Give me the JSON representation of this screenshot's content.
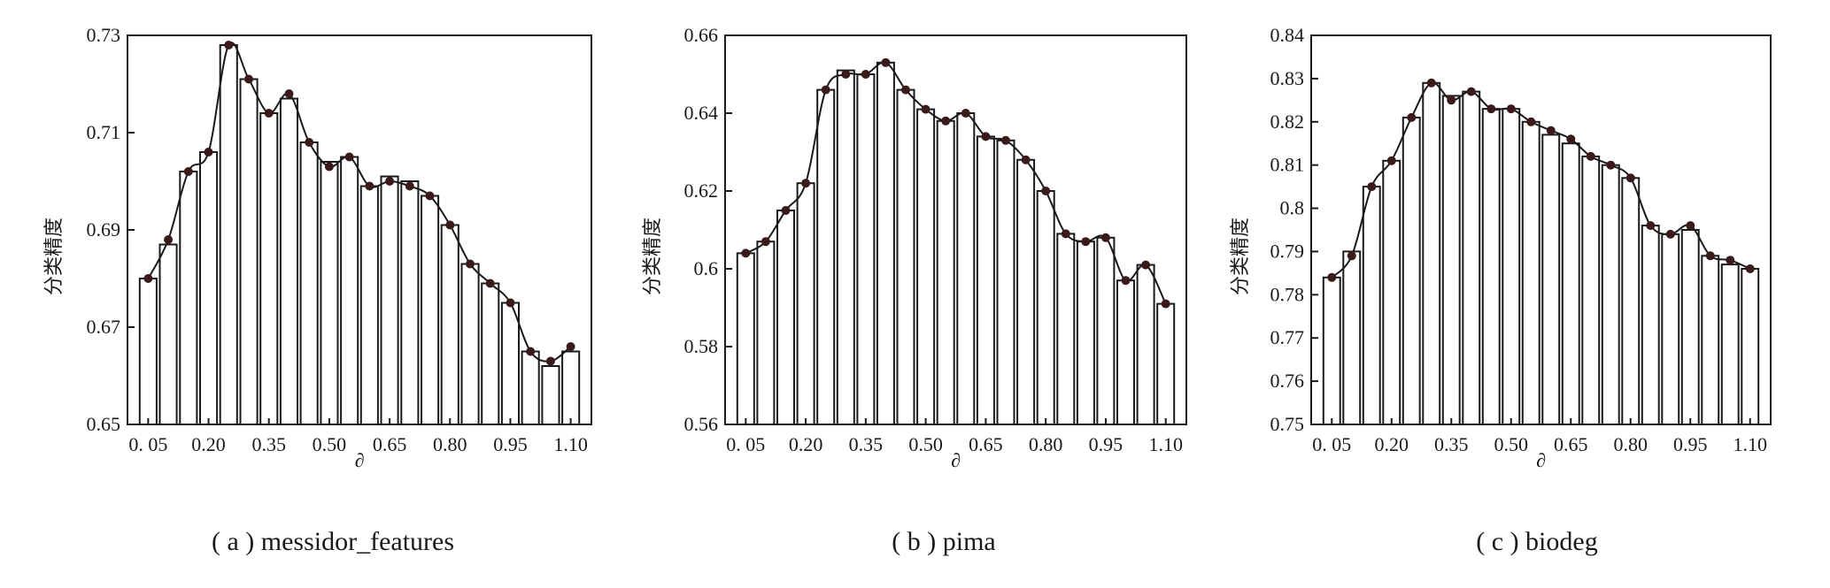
{
  "chart_data": [
    {
      "type": "bar",
      "caption": "( a ) messidor_features",
      "xlabel": "∂",
      "ylabel": "分类精度",
      "ylim": [
        0.65,
        0.73
      ],
      "yticks": [
        0.65,
        0.67,
        0.69,
        0.71,
        0.73
      ],
      "xtick_labels": [
        "0. 05",
        "0.20",
        "0.35",
        "0.50",
        "0.65",
        "0.80",
        "0.95",
        "1.10"
      ],
      "x": [
        0.05,
        0.1,
        0.15,
        0.2,
        0.25,
        0.3,
        0.35,
        0.4,
        0.45,
        0.5,
        0.55,
        0.6,
        0.65,
        0.7,
        0.75,
        0.8,
        0.85,
        0.9,
        0.95,
        1.0,
        1.05,
        1.1
      ],
      "values": [
        0.68,
        0.687,
        0.702,
        0.706,
        0.728,
        0.721,
        0.714,
        0.717,
        0.708,
        0.704,
        0.705,
        0.699,
        0.701,
        0.7,
        0.697,
        0.691,
        0.683,
        0.679,
        0.675,
        0.665,
        0.662,
        0.665
      ],
      "line_values": [
        0.68,
        0.688,
        0.702,
        0.706,
        0.728,
        0.721,
        0.714,
        0.718,
        0.708,
        0.703,
        0.705,
        0.699,
        0.7,
        0.699,
        0.697,
        0.691,
        0.683,
        0.679,
        0.675,
        0.665,
        0.663,
        0.666
      ],
      "grid": false,
      "legend": "none"
    },
    {
      "type": "bar",
      "caption": "( b ) pima",
      "xlabel": "∂",
      "ylabel": "分类精度",
      "ylim": [
        0.56,
        0.66
      ],
      "yticks": [
        0.56,
        0.58,
        0.6,
        0.62,
        0.64,
        0.66
      ],
      "xtick_labels": [
        "0. 05",
        "0.20",
        "0.35",
        "0.50",
        "0.65",
        "0.80",
        "0.95",
        "1.10"
      ],
      "x": [
        0.05,
        0.1,
        0.15,
        0.2,
        0.25,
        0.3,
        0.35,
        0.4,
        0.45,
        0.5,
        0.55,
        0.6,
        0.65,
        0.7,
        0.75,
        0.8,
        0.85,
        0.9,
        0.95,
        1.0,
        1.05,
        1.1
      ],
      "values": [
        0.604,
        0.607,
        0.615,
        0.622,
        0.646,
        0.651,
        0.65,
        0.653,
        0.646,
        0.641,
        0.638,
        0.64,
        0.634,
        0.633,
        0.628,
        0.62,
        0.609,
        0.607,
        0.608,
        0.597,
        0.601,
        0.591
      ],
      "line_values": [
        0.604,
        0.607,
        0.615,
        0.622,
        0.646,
        0.65,
        0.65,
        0.653,
        0.646,
        0.641,
        0.638,
        0.64,
        0.634,
        0.633,
        0.628,
        0.62,
        0.609,
        0.607,
        0.608,
        0.597,
        0.601,
        0.591
      ],
      "grid": false,
      "legend": "none"
    },
    {
      "type": "bar",
      "caption": "( c ) biodeg",
      "xlabel": "∂",
      "ylabel": "分类精度",
      "ylim": [
        0.75,
        0.84
      ],
      "yticks": [
        0.75,
        0.76,
        0.77,
        0.78,
        0.79,
        0.8,
        0.81,
        0.82,
        0.83,
        0.84
      ],
      "xtick_labels": [
        "0. 05",
        "0.20",
        "0.35",
        "0.50",
        "0.65",
        "0.80",
        "0.95",
        "1.10"
      ],
      "x": [
        0.05,
        0.1,
        0.15,
        0.2,
        0.25,
        0.3,
        0.35,
        0.4,
        0.45,
        0.5,
        0.55,
        0.6,
        0.65,
        0.7,
        0.75,
        0.8,
        0.85,
        0.9,
        0.95,
        1.0,
        1.05,
        1.1
      ],
      "values": [
        0.784,
        0.79,
        0.805,
        0.811,
        0.821,
        0.829,
        0.826,
        0.827,
        0.823,
        0.823,
        0.82,
        0.817,
        0.815,
        0.812,
        0.81,
        0.807,
        0.796,
        0.794,
        0.795,
        0.789,
        0.787,
        0.786
      ],
      "line_values": [
        0.784,
        0.789,
        0.805,
        0.811,
        0.821,
        0.829,
        0.825,
        0.827,
        0.823,
        0.823,
        0.82,
        0.818,
        0.816,
        0.812,
        0.81,
        0.807,
        0.796,
        0.794,
        0.796,
        0.789,
        0.788,
        0.786
      ],
      "grid": false,
      "legend": "none"
    }
  ],
  "style": {
    "axis_color": "#1a1a1a",
    "bar_fill": "#ffffff",
    "bar_stroke": "#1a1a1a",
    "line_color": "#1a1a1a",
    "marker_color": "#3a1a1a"
  }
}
